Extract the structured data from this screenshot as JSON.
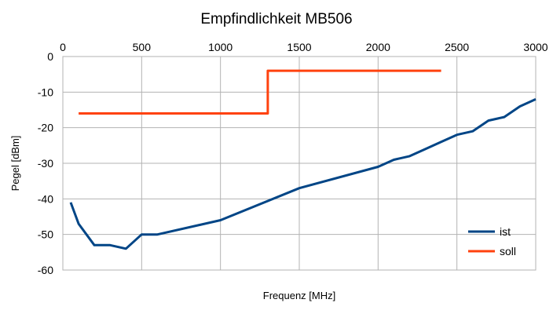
{
  "chart_data": {
    "type": "line",
    "title": "Empfindlichkeit MB506",
    "xlabel": "Frequenz [MHz]",
    "ylabel": "Pegel [dBm]",
    "xlim": [
      0,
      3000
    ],
    "ylim": [
      -60,
      0
    ],
    "x_ticks": [
      0,
      500,
      1000,
      1500,
      2000,
      2500,
      3000
    ],
    "y_ticks": [
      0,
      -10,
      -20,
      -30,
      -40,
      -50,
      -60
    ],
    "x_axis_position": "top",
    "grid": true,
    "legend_position": "bottom-right",
    "series": [
      {
        "name": "ist",
        "color": "#004586",
        "points": [
          [
            50,
            -41
          ],
          [
            100,
            -47
          ],
          [
            200,
            -53
          ],
          [
            300,
            -53
          ],
          [
            400,
            -54
          ],
          [
            500,
            -50
          ],
          [
            600,
            -50
          ],
          [
            1000,
            -46
          ],
          [
            1500,
            -37
          ],
          [
            2000,
            -31
          ],
          [
            2100,
            -29
          ],
          [
            2200,
            -28
          ],
          [
            2300,
            -26
          ],
          [
            2400,
            -24
          ],
          [
            2500,
            -22
          ],
          [
            2600,
            -21
          ],
          [
            2700,
            -18
          ],
          [
            2800,
            -17
          ],
          [
            2900,
            -14
          ],
          [
            3000,
            -12
          ]
        ]
      },
      {
        "name": "soll",
        "color": "#ff420e",
        "points": [
          [
            100,
            -16
          ],
          [
            1300,
            -16
          ],
          [
            1300,
            -4
          ],
          [
            2400,
            -4
          ]
        ]
      }
    ]
  }
}
